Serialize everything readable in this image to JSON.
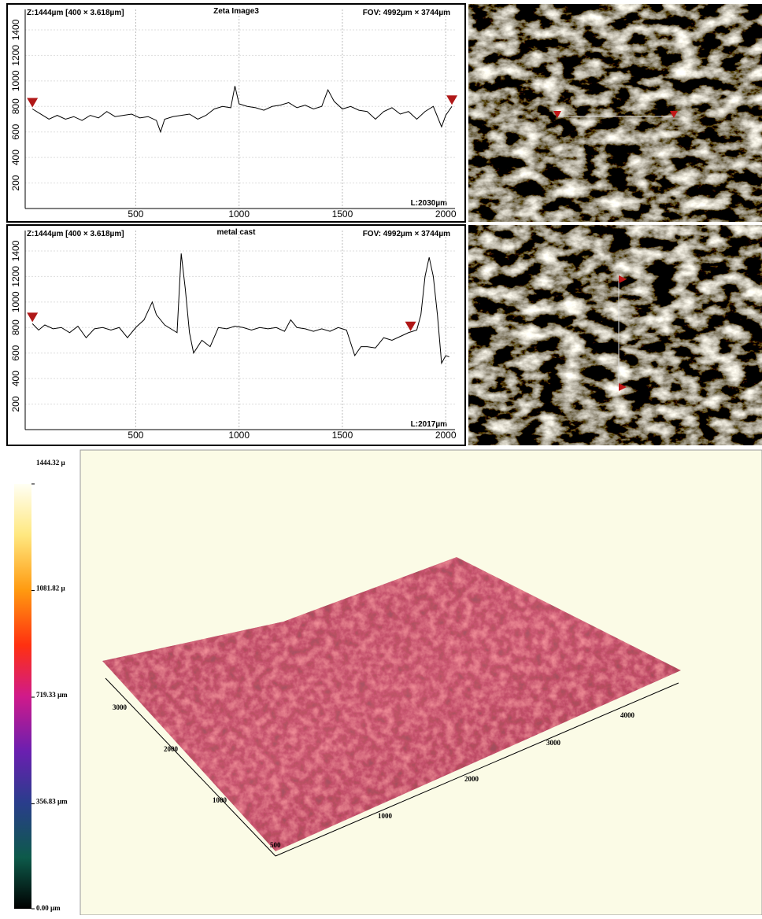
{
  "chart_data": [
    {
      "type": "line",
      "z_info": "Z:1444µm [400 × 3.618µm]",
      "title": "Zeta Image3",
      "fov": "FOV: 4992µm × 3744µm",
      "length": "L:2030µm",
      "x": [
        0,
        40,
        80,
        120,
        160,
        200,
        240,
        280,
        320,
        360,
        400,
        440,
        480,
        520,
        560,
        600,
        620,
        640,
        680,
        720,
        760,
        800,
        840,
        880,
        920,
        960,
        980,
        1000,
        1040,
        1080,
        1120,
        1160,
        1200,
        1240,
        1280,
        1320,
        1360,
        1400,
        1430,
        1460,
        1500,
        1540,
        1580,
        1620,
        1660,
        1700,
        1740,
        1780,
        1820,
        1860,
        1900,
        1940,
        1980,
        2000,
        2030
      ],
      "values": [
        780,
        740,
        700,
        730,
        700,
        720,
        690,
        730,
        710,
        760,
        720,
        730,
        740,
        710,
        720,
        690,
        600,
        700,
        720,
        730,
        740,
        700,
        730,
        780,
        800,
        790,
        960,
        820,
        800,
        790,
        770,
        800,
        810,
        830,
        790,
        810,
        780,
        800,
        930,
        840,
        780,
        800,
        770,
        760,
        700,
        760,
        790,
        740,
        760,
        700,
        760,
        800,
        640,
        730,
        800
      ],
      "color": "#000000",
      "cursor_x": [
        0,
        2030
      ],
      "cursor_color": "#b01818",
      "xlim": [
        -35,
        2045
      ],
      "ylim": [
        0,
        1560
      ],
      "xticks": [
        500,
        1000,
        1500,
        2000
      ],
      "yticks": [
        200,
        400,
        600,
        800,
        1000,
        1200,
        1400
      ],
      "grid": true
    },
    {
      "type": "line",
      "z_info": "Z:1444µm [400 × 3.618µm]",
      "title": "metal cast",
      "fov": "FOV: 4992µm × 3744µm",
      "length": "L:2017µm",
      "x": [
        0,
        30,
        60,
        100,
        140,
        180,
        220,
        260,
        300,
        340,
        380,
        420,
        460,
        500,
        540,
        580,
        600,
        640,
        680,
        700,
        720,
        740,
        760,
        780,
        820,
        860,
        900,
        940,
        980,
        1020,
        1060,
        1100,
        1140,
        1180,
        1220,
        1250,
        1280,
        1320,
        1360,
        1400,
        1440,
        1480,
        1520,
        1560,
        1590,
        1620,
        1660,
        1700,
        1740,
        1780,
        1820,
        1860,
        1880,
        1900,
        1920,
        1940,
        1960,
        1980,
        2000,
        2017
      ],
      "values": [
        830,
        780,
        820,
        790,
        800,
        760,
        810,
        720,
        790,
        800,
        780,
        800,
        720,
        800,
        860,
        1000,
        900,
        820,
        780,
        760,
        1380,
        1100,
        760,
        600,
        700,
        650,
        800,
        790,
        810,
        800,
        780,
        800,
        790,
        800,
        770,
        860,
        800,
        790,
        770,
        790,
        770,
        800,
        780,
        580,
        650,
        650,
        640,
        720,
        700,
        730,
        760,
        780,
        900,
        1200,
        1350,
        1200,
        900,
        520,
        580,
        570
      ],
      "color": "#000000",
      "cursor_x": [
        0,
        1830
      ],
      "cursor_color": "#b01818",
      "xlim": [
        -35,
        2045
      ],
      "ylim": [
        0,
        1560
      ],
      "xticks": [
        500,
        1000,
        1500,
        2000
      ],
      "yticks": [
        200,
        400,
        600,
        800,
        1000,
        1200,
        1400
      ],
      "grid": true
    }
  ],
  "colorbar": {
    "ylim": [
      0,
      1444.32
    ],
    "ticks": [
      {
        "value": 1444.32,
        "label": "1444.32 µ"
      },
      {
        "value": 1081.82,
        "label": "1081.82 µ"
      },
      {
        "value": 719.33,
        "label": "719.33 µm"
      },
      {
        "value": 356.83,
        "label": "356.83 µm"
      },
      {
        "value": 0,
        "label": "0.00 µm"
      }
    ]
  },
  "surface": {
    "left_axis_labels": [
      "3000",
      "2000",
      "1000",
      "500"
    ],
    "right_axis_labels": [
      "1000",
      "2000",
      "3000",
      "4000"
    ]
  }
}
